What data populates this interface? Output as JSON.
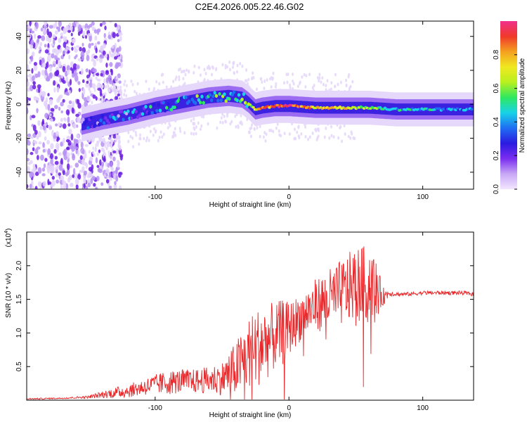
{
  "title": "C2E4.2026.005.22.46.G02",
  "colors": {
    "snr_line": "#e8282a",
    "ridge_low": "#6a1fe0",
    "ridge_mid": "#19c3d2",
    "ridge_high": "#e03a2a"
  },
  "chart_data": [
    {
      "type": "heatmap",
      "title": "",
      "xlabel": "Height of straight line (km)",
      "ylabel": "Frequency (Hz)",
      "xlim": [
        -196,
        138
      ],
      "ylim": [
        -50,
        49
      ],
      "xticks": [
        -100,
        0,
        100
      ],
      "xticklabels": [
        "-100",
        "0",
        "100"
      ],
      "yticks": [
        -40,
        -20,
        0,
        20,
        40
      ],
      "yticklabels": [
        "-40",
        "-20",
        "0",
        "20",
        "40"
      ],
      "ridge": {
        "x": [
          -155,
          -140,
          -120,
          -100,
          -80,
          -60,
          -45,
          -35,
          -30,
          -25,
          -20,
          -10,
          0,
          20,
          40,
          60,
          80,
          100,
          120,
          138
        ],
        "y": [
          -12,
          -9,
          -6,
          -2,
          1,
          4,
          5,
          4,
          1,
          -3,
          -2,
          -1,
          -1,
          -2,
          -2,
          -2,
          -3,
          -3,
          -3,
          -3
        ],
        "amplitude": [
          0.15,
          0.2,
          0.22,
          0.3,
          0.35,
          0.4,
          0.45,
          0.4,
          0.5,
          0.7,
          0.8,
          0.85,
          0.95,
          0.75,
          0.7,
          0.6,
          0.5,
          0.45,
          0.4,
          0.35
        ]
      },
      "noise_region_x": [
        -196,
        -140
      ],
      "colorbar": {
        "label": "Normalized spectral amplitude",
        "ticks": [
          0.0,
          0.2,
          0.4,
          0.6,
          0.8
        ],
        "ticklabels": [
          "0.0",
          "0.2",
          "0.4",
          "0.6",
          "0.8"
        ],
        "colors": [
          "#f3e6ff",
          "#c8a8f5",
          "#7a2ef0",
          "#2c1ae0",
          "#1f6ef2",
          "#18d2e8",
          "#2ee860",
          "#b8f020",
          "#f0e820",
          "#f5a020",
          "#f03a2a",
          "#f0308c"
        ]
      }
    },
    {
      "type": "line",
      "title": "",
      "xlabel": "Height of straight line (km)",
      "ylabel": "SNR (10 * v/v)",
      "yscale_label": "(x10",
      "yscale_exp": "4",
      "yscale_close": ")",
      "xlim": [
        -196,
        138
      ],
      "ylim": [
        0,
        2.5
      ],
      "xticks": [
        -100,
        0,
        100
      ],
      "xticklabels": [
        "-100",
        "0",
        "100"
      ],
      "yticks": [
        0.5,
        1.0,
        1.5,
        2.0
      ],
      "yticklabels": [
        "0.5",
        "1.0",
        "1.5",
        "2.0"
      ],
      "series": [
        {
          "name": "SNR",
          "x": [
            -196,
            -170,
            -150,
            -130,
            -120,
            -110,
            -100,
            -90,
            -80,
            -70,
            -60,
            -50,
            -40,
            -30,
            -20,
            -15,
            -10,
            -5,
            0,
            10,
            20,
            30,
            40,
            50,
            55,
            60,
            65,
            70,
            75,
            80,
            90,
            100,
            110,
            120,
            130,
            138
          ],
          "y": [
            0.02,
            0.03,
            0.05,
            0.12,
            0.15,
            0.2,
            0.25,
            0.28,
            0.3,
            0.3,
            0.32,
            0.35,
            0.5,
            0.75,
            0.9,
            0.95,
            1.0,
            1.05,
            1.1,
            1.3,
            1.45,
            1.55,
            1.65,
            1.8,
            1.75,
            1.85,
            1.7,
            1.55,
            1.6,
            1.58,
            1.58,
            1.6,
            1.6,
            1.6,
            1.6,
            1.58
          ],
          "spread": [
            0.01,
            0.01,
            0.02,
            0.08,
            0.1,
            0.12,
            0.15,
            0.18,
            0.18,
            0.18,
            0.2,
            0.25,
            0.4,
            0.55,
            0.6,
            0.55,
            0.5,
            0.5,
            0.4,
            0.35,
            0.4,
            0.45,
            0.5,
            0.55,
            0.6,
            0.55,
            0.45,
            0.15,
            0.05,
            0.03,
            0.03,
            0.03,
            0.03,
            0.03,
            0.03,
            0.03
          ]
        }
      ]
    }
  ]
}
